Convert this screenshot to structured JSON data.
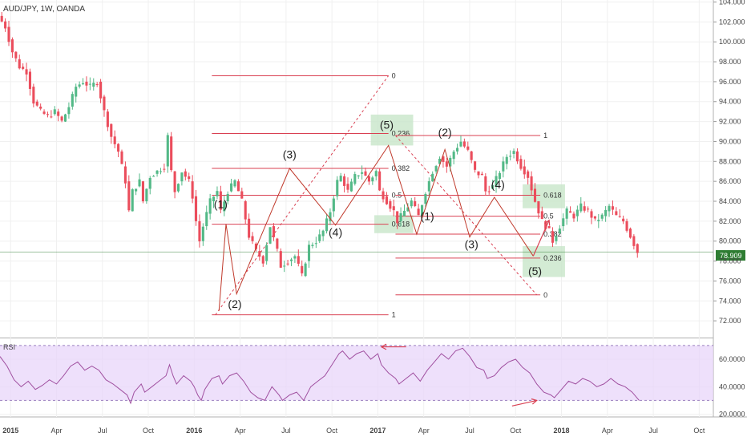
{
  "chart_data": {
    "type": "candlestick",
    "title": "AUD/JPY, 1W, OANDA",
    "current_price": "78.909",
    "price_axis": {
      "ticks": [
        "104.000",
        "102.000",
        "100.000",
        "98.000",
        "96.000",
        "94.000",
        "92.000",
        "90.000",
        "88.000",
        "86.000",
        "84.000",
        "82.000",
        "80.000",
        "78.000",
        "76.000",
        "74.000",
        "72.000"
      ],
      "range": [
        70.4,
        104.2
      ]
    },
    "rsi_axis": {
      "label": "RSI",
      "ticks": [
        "60.0000",
        "40.0000",
        "20.0000"
      ],
      "range": [
        18,
        74
      ],
      "band": [
        30,
        70
      ]
    },
    "time_axis": {
      "ticks": [
        "2015",
        "Apr",
        "Jul",
        "Oct",
        "2016",
        "Apr",
        "Jul",
        "Oct",
        "2017",
        "Apr",
        "Jul",
        "Oct",
        "2018",
        "Apr",
        "Jul",
        "Oct"
      ],
      "range": [
        0,
        202
      ]
    },
    "price_path": [
      [
        0,
        102.6
      ],
      [
        2,
        101.5
      ],
      [
        4,
        99
      ],
      [
        6,
        97.5
      ],
      [
        8,
        97
      ],
      [
        10,
        94
      ],
      [
        12,
        93
      ],
      [
        14,
        92.5
      ],
      [
        16,
        93
      ],
      [
        18,
        92
      ],
      [
        20,
        93.5
      ],
      [
        22,
        95.5
      ],
      [
        24,
        96
      ],
      [
        26,
        95.5
      ],
      [
        28,
        96
      ],
      [
        30,
        93
      ],
      [
        32,
        90.5
      ],
      [
        34,
        89
      ],
      [
        36,
        86
      ],
      [
        37,
        83
      ],
      [
        38,
        85
      ],
      [
        40,
        86
      ],
      [
        41,
        84
      ],
      [
        43,
        86.5
      ],
      [
        45,
        87
      ],
      [
        47,
        87.5
      ],
      [
        48,
        90.5
      ],
      [
        49,
        87
      ],
      [
        50,
        85
      ],
      [
        52,
        87
      ],
      [
        54,
        86
      ],
      [
        55,
        84.5
      ],
      [
        56,
        82
      ],
      [
        57,
        80
      ],
      [
        58,
        81.5
      ],
      [
        60,
        84
      ],
      [
        62,
        85
      ],
      [
        63,
        83
      ],
      [
        65,
        85
      ],
      [
        67,
        86
      ],
      [
        69,
        84
      ],
      [
        71,
        80.5
      ],
      [
        73,
        79
      ],
      [
        75,
        78
      ],
      [
        77,
        81.5
      ],
      [
        79,
        79
      ],
      [
        80,
        77.5
      ],
      [
        82,
        78
      ],
      [
        84,
        78.5
      ],
      [
        86,
        76.5
      ],
      [
        88,
        79.5
      ],
      [
        90,
        80
      ],
      [
        92,
        81
      ],
      [
        94,
        83
      ],
      [
        96,
        86
      ],
      [
        97,
        86.5
      ],
      [
        99,
        85
      ],
      [
        101,
        86.5
      ],
      [
        103,
        87
      ],
      [
        105,
        86
      ],
      [
        107,
        87
      ],
      [
        108,
        85
      ],
      [
        110,
        84
      ],
      [
        112,
        83
      ],
      [
        113,
        82
      ],
      [
        115,
        83
      ],
      [
        117,
        84
      ],
      [
        119,
        82.5
      ],
      [
        121,
        85
      ],
      [
        123,
        87
      ],
      [
        125,
        88.5
      ],
      [
        127,
        87.5
      ],
      [
        129,
        89
      ],
      [
        131,
        90
      ],
      [
        133,
        89
      ],
      [
        135,
        87
      ],
      [
        137,
        86.5
      ],
      [
        138,
        85
      ],
      [
        140,
        85.5
      ],
      [
        142,
        87
      ],
      [
        144,
        88.5
      ],
      [
        146,
        89
      ],
      [
        148,
        87.5
      ],
      [
        150,
        86.5
      ],
      [
        152,
        84
      ],
      [
        154,
        82
      ],
      [
        156,
        81
      ],
      [
        157,
        80
      ],
      [
        159,
        81.5
      ],
      [
        161,
        83
      ],
      [
        163,
        82.5
      ],
      [
        165,
        83.5
      ],
      [
        167,
        83
      ],
      [
        169,
        82
      ],
      [
        171,
        82.5
      ],
      [
        173,
        83.5
      ],
      [
        175,
        82.5
      ],
      [
        177,
        82
      ],
      [
        179,
        80.5
      ],
      [
        181,
        78.909
      ]
    ],
    "rsi_path": [
      [
        0,
        62
      ],
      [
        2,
        55
      ],
      [
        4,
        45
      ],
      [
        6,
        40
      ],
      [
        8,
        44
      ],
      [
        10,
        38
      ],
      [
        12,
        41
      ],
      [
        14,
        45
      ],
      [
        16,
        42
      ],
      [
        18,
        48
      ],
      [
        20,
        55
      ],
      [
        22,
        58
      ],
      [
        24,
        52
      ],
      [
        26,
        55
      ],
      [
        28,
        52
      ],
      [
        30,
        45
      ],
      [
        32,
        42
      ],
      [
        34,
        38
      ],
      [
        36,
        34
      ],
      [
        37,
        28
      ],
      [
        38,
        36
      ],
      [
        40,
        42
      ],
      [
        41,
        36
      ],
      [
        43,
        40
      ],
      [
        45,
        44
      ],
      [
        47,
        48
      ],
      [
        48,
        56
      ],
      [
        49,
        48
      ],
      [
        50,
        42
      ],
      [
        52,
        48
      ],
      [
        54,
        44
      ],
      [
        55,
        40
      ],
      [
        56,
        34
      ],
      [
        57,
        30
      ],
      [
        58,
        38
      ],
      [
        60,
        46
      ],
      [
        62,
        48
      ],
      [
        63,
        42
      ],
      [
        65,
        48
      ],
      [
        67,
        50
      ],
      [
        69,
        44
      ],
      [
        71,
        36
      ],
      [
        73,
        32
      ],
      [
        75,
        30
      ],
      [
        77,
        40
      ],
      [
        79,
        34
      ],
      [
        80,
        30
      ],
      [
        82,
        34
      ],
      [
        84,
        36
      ],
      [
        86,
        30
      ],
      [
        88,
        40
      ],
      [
        90,
        44
      ],
      [
        92,
        48
      ],
      [
        94,
        56
      ],
      [
        96,
        64
      ],
      [
        97,
        66
      ],
      [
        99,
        60
      ],
      [
        101,
        64
      ],
      [
        103,
        66
      ],
      [
        105,
        60
      ],
      [
        107,
        64
      ],
      [
        108,
        56
      ],
      [
        110,
        50
      ],
      [
        112,
        46
      ],
      [
        113,
        42
      ],
      [
        115,
        46
      ],
      [
        117,
        50
      ],
      [
        119,
        44
      ],
      [
        121,
        52
      ],
      [
        123,
        58
      ],
      [
        125,
        64
      ],
      [
        127,
        60
      ],
      [
        129,
        66
      ],
      [
        131,
        68
      ],
      [
        133,
        62
      ],
      [
        135,
        54
      ],
      [
        137,
        52
      ],
      [
        138,
        46
      ],
      [
        140,
        48
      ],
      [
        142,
        54
      ],
      [
        144,
        58
      ],
      [
        146,
        60
      ],
      [
        148,
        54
      ],
      [
        150,
        50
      ],
      [
        152,
        42
      ],
      [
        154,
        36
      ],
      [
        156,
        34
      ],
      [
        157,
        32
      ],
      [
        159,
        38
      ],
      [
        161,
        44
      ],
      [
        163,
        42
      ],
      [
        165,
        46
      ],
      [
        167,
        44
      ],
      [
        169,
        40
      ],
      [
        171,
        42
      ],
      [
        173,
        46
      ],
      [
        175,
        42
      ],
      [
        177,
        40
      ],
      [
        179,
        36
      ],
      [
        181,
        30
      ]
    ],
    "wave_path": [
      [
        62,
        73.0
      ],
      [
        64,
        81.7
      ],
      [
        67,
        74.7
      ],
      [
        82,
        87.3
      ],
      [
        95,
        81.6
      ],
      [
        110,
        89.6
      ],
      [
        118,
        80.7
      ],
      [
        126,
        89.2
      ],
      [
        133,
        80.4
      ],
      [
        140,
        84.4
      ],
      [
        151,
        78.5
      ]
    ],
    "wave_labels": [
      {
        "text": "(1)",
        "x": 62.5,
        "y": 83.3
      },
      {
        "text": "(2)",
        "x": 66.5,
        "y": 73.3
      },
      {
        "text": "(3)",
        "x": 82,
        "y": 88.3
      },
      {
        "text": "(4)",
        "x": 95,
        "y": 80.5
      },
      {
        "text": "(5)",
        "x": 109.5,
        "y": 91.3
      },
      {
        "text": "(1)",
        "x": 121,
        "y": 82.1
      },
      {
        "text": "(2)",
        "x": 126,
        "y": 90.5
      },
      {
        "text": "(3)",
        "x": 133.5,
        "y": 79.3
      },
      {
        "text": "(4)",
        "x": 141,
        "y": 85.3
      },
      {
        "text": "(5)",
        "x": 151.5,
        "y": 76.6
      }
    ],
    "fib_sets": [
      {
        "x1": 60,
        "x2": 110,
        "levels": [
          {
            "label": "0",
            "price": 96.6
          },
          {
            "label": "0.236",
            "price": 90.8
          },
          {
            "label": "0.382",
            "price": 87.3
          },
          {
            "label": "0.5",
            "price": 84.6
          },
          {
            "label": "0.618",
            "price": 81.7
          },
          {
            "label": "1",
            "price": 72.6
          }
        ]
      },
      {
        "x1": 112,
        "x2": 153,
        "levels": [
          {
            "label": "1",
            "price": 90.6
          },
          {
            "label": "0.618",
            "price": 84.6
          },
          {
            "label": "0.5",
            "price": 82.5
          },
          {
            "label": "0.382",
            "price": 80.7
          },
          {
            "label": "0.236",
            "price": 78.3
          },
          {
            "label": "0",
            "price": 74.6
          }
        ]
      }
    ],
    "fib_diagonals": [
      {
        "from": [
          61,
          72.6
        ],
        "to": [
          110,
          96.6
        ]
      },
      {
        "from": [
          112,
          90.6
        ],
        "to": [
          152,
          74.6
        ]
      }
    ],
    "zones": [
      {
        "x1": 105,
        "x2": 117,
        "p1": 89.6,
        "p2": 92.7
      },
      {
        "x1": 106,
        "x2": 117,
        "p1": 80.8,
        "p2": 82.6
      },
      {
        "x1": 148,
        "x2": 160,
        "p1": 83.3,
        "p2": 85.7
      },
      {
        "x1": 148,
        "x2": 160,
        "p1": 76.4,
        "p2": 79.5
      }
    ],
    "rsi_arrows": [
      {
        "from": [
          115,
          69
        ],
        "to": [
          108,
          69
        ]
      },
      {
        "from": [
          145,
          26
        ],
        "to": [
          152,
          30
        ]
      }
    ],
    "price_arrow": {
      "from": [
        151,
        78.5
      ],
      "to": [
        155.5,
        82.1
      ]
    },
    "colors": {
      "up": "#53b987",
      "down": "#eb4d5c",
      "fib": "#d94052",
      "zone": "#c8e6c9",
      "rsi_band": "#e8d5f9",
      "rsi_line": "#a050a0",
      "price_tag": "#2e7d32"
    }
  }
}
